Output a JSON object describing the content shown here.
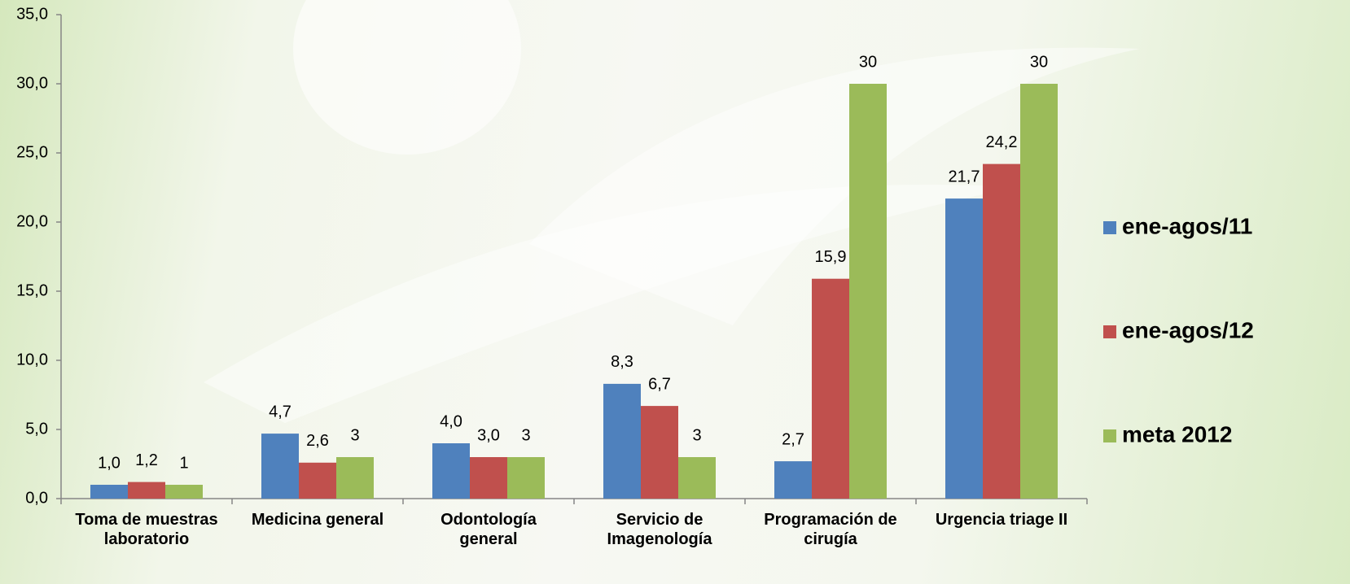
{
  "chart_data": {
    "type": "bar",
    "categories": [
      "Toma de muestras\nlaboratorio",
      "Medicina general",
      "Odontología\ngeneral",
      "Servicio de\nImagenología",
      "Programación de\ncirugía",
      "Urgencia triage II"
    ],
    "series": [
      {
        "name": "ene-agos/11",
        "color": "#4f81bd",
        "values": [
          1.0,
          4.7,
          4.0,
          8.3,
          2.7,
          21.7
        ],
        "value_labels": [
          "1,0",
          "4,7",
          "4,0",
          "8,3",
          "2,7",
          "21,7"
        ]
      },
      {
        "name": "ene-agos/12",
        "color": "#c0504d",
        "values": [
          1.2,
          2.6,
          3.0,
          6.7,
          15.9,
          24.2
        ],
        "value_labels": [
          "1,2",
          "2,6",
          "3,0",
          "6,7",
          "15,9",
          "24,2"
        ]
      },
      {
        "name": "meta 2012",
        "color": "#9bbb59",
        "values": [
          1,
          3,
          3,
          3,
          30,
          30
        ]
      }
    ],
    "ylim": [
      0,
      35
    ],
    "yticks": [
      {
        "value": 0,
        "label": "0,0"
      },
      {
        "value": 5,
        "label": "5,0"
      },
      {
        "value": 10,
        "label": "10,0"
      },
      {
        "value": 15,
        "label": "15,0"
      },
      {
        "value": 20,
        "label": "20,0"
      },
      {
        "value": 25,
        "label": "25,0"
      },
      {
        "value": 30,
        "label": "30,0"
      },
      {
        "value": 35,
        "label": "35,0"
      }
    ],
    "grid": false,
    "legend": "right"
  }
}
